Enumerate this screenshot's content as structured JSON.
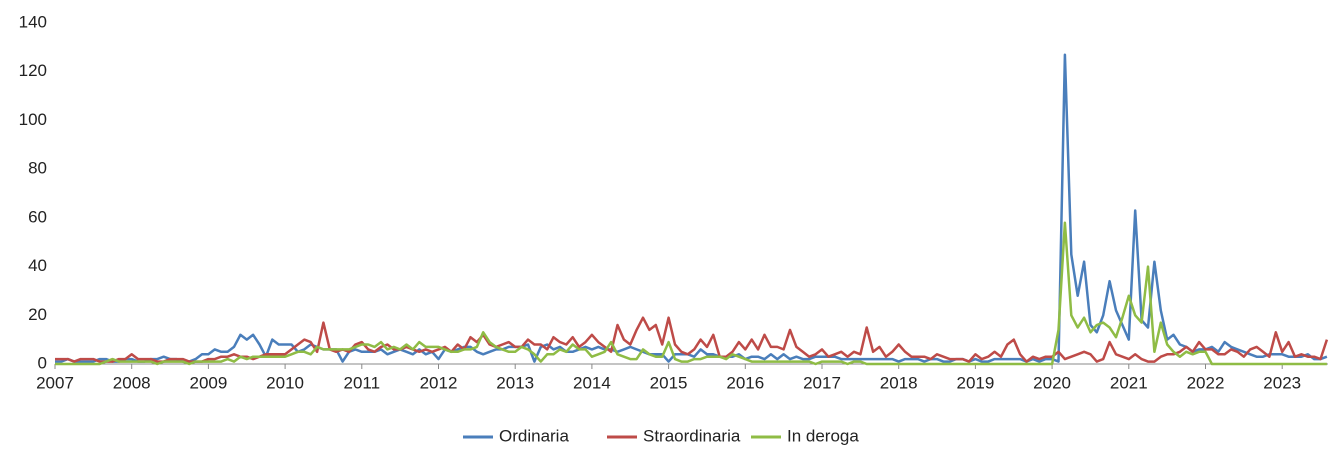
{
  "chart_data": {
    "type": "line",
    "categories": [
      "2007",
      null,
      null,
      null,
      null,
      null,
      null,
      null,
      null,
      null,
      null,
      null,
      "2008",
      null,
      null,
      null,
      null,
      null,
      null,
      null,
      null,
      null,
      null,
      null,
      "2009",
      null,
      null,
      null,
      null,
      null,
      null,
      null,
      null,
      null,
      null,
      null,
      "2010",
      null,
      null,
      null,
      null,
      null,
      null,
      null,
      null,
      null,
      null,
      null,
      "2011",
      null,
      null,
      null,
      null,
      null,
      null,
      null,
      null,
      null,
      null,
      null,
      "2012",
      null,
      null,
      null,
      null,
      null,
      null,
      null,
      null,
      null,
      null,
      null,
      "2013",
      null,
      null,
      null,
      null,
      null,
      null,
      null,
      null,
      null,
      null,
      null,
      "2014",
      null,
      null,
      null,
      null,
      null,
      null,
      null,
      null,
      null,
      null,
      null,
      "2015",
      null,
      null,
      null,
      null,
      null,
      null,
      null,
      null,
      null,
      null,
      null,
      "2016",
      null,
      null,
      null,
      null,
      null,
      null,
      null,
      null,
      null,
      null,
      null,
      "2017",
      null,
      null,
      null,
      null,
      null,
      null,
      null,
      null,
      null,
      null,
      null,
      "2018",
      null,
      null,
      null,
      null,
      null,
      null,
      null,
      null,
      null,
      null,
      null,
      "2019",
      null,
      null,
      null,
      null,
      null,
      null,
      null,
      null,
      null,
      null,
      null,
      "2020",
      null,
      null,
      null,
      null,
      null,
      null,
      null,
      null,
      null,
      null,
      null,
      "2021",
      null,
      null,
      null,
      null,
      null,
      null,
      null,
      null,
      null,
      null,
      null,
      "2022",
      null,
      null,
      null,
      null,
      null,
      null,
      null,
      null,
      null,
      null,
      null,
      "2023",
      null,
      null,
      null,
      null,
      null,
      null,
      null
    ],
    "series": [
      {
        "name": "Ordinaria",
        "color": "#4a7ebb",
        "values": [
          1,
          1,
          2,
          1,
          1,
          1,
          1,
          2,
          2,
          1,
          1,
          2,
          2,
          1,
          1,
          2,
          2,
          3,
          2,
          2,
          1,
          1,
          2,
          4,
          4,
          6,
          5,
          5,
          7,
          12,
          10,
          12,
          8,
          3,
          10,
          8,
          8,
          8,
          5,
          6,
          8,
          7,
          6,
          6,
          6,
          1,
          5,
          6,
          5,
          5,
          5,
          6,
          4,
          5,
          6,
          5,
          4,
          6,
          4,
          5,
          2,
          6,
          5,
          6,
          7,
          7,
          5,
          4,
          5,
          6,
          6,
          7,
          7,
          7,
          8,
          1,
          7,
          8,
          6,
          7,
          5,
          5,
          6,
          7,
          6,
          7,
          6,
          6,
          5,
          6,
          7,
          6,
          5,
          4,
          4,
          4,
          1,
          4,
          4,
          4,
          3,
          6,
          4,
          4,
          3,
          3,
          3,
          4,
          2,
          3,
          3,
          2,
          4,
          2,
          4,
          2,
          3,
          2,
          2,
          3,
          3,
          3,
          3,
          2,
          2,
          2,
          2,
          2,
          2,
          2,
          2,
          2,
          1,
          2,
          2,
          2,
          1,
          2,
          2,
          1,
          1,
          2,
          2,
          1,
          2,
          1,
          1,
          2,
          2,
          2,
          2,
          2,
          1,
          2,
          1,
          2,
          2,
          1,
          127,
          45,
          28,
          42,
          16,
          13,
          20,
          34,
          22,
          16,
          10,
          63,
          18,
          15,
          42,
          22,
          10,
          12,
          8,
          7,
          5,
          6,
          6,
          7,
          5,
          9,
          7,
          6,
          5,
          4,
          3,
          3,
          4,
          4,
          4,
          3,
          3,
          3,
          4,
          2,
          2,
          3
        ]
      },
      {
        "name": "Straordinaria",
        "color": "#be4b48",
        "values": [
          2,
          2,
          2,
          1,
          2,
          2,
          2,
          1,
          1,
          1,
          2,
          2,
          4,
          2,
          2,
          2,
          1,
          1,
          2,
          2,
          2,
          1,
          1,
          1,
          2,
          2,
          3,
          3,
          4,
          3,
          3,
          2,
          3,
          4,
          4,
          4,
          4,
          6,
          8,
          10,
          9,
          5,
          17,
          6,
          5,
          6,
          5,
          8,
          9,
          6,
          5,
          7,
          8,
          6,
          6,
          7,
          6,
          5,
          6,
          5,
          6,
          7,
          5,
          8,
          6,
          11,
          9,
          12,
          8,
          7,
          8,
          9,
          7,
          7,
          10,
          8,
          8,
          6,
          11,
          9,
          8,
          11,
          7,
          9,
          12,
          9,
          7,
          5,
          16,
          10,
          8,
          14,
          19,
          14,
          16,
          8,
          19,
          8,
          5,
          4,
          6,
          10,
          7,
          12,
          3,
          3,
          5,
          9,
          6,
          10,
          6,
          12,
          7,
          7,
          6,
          14,
          7,
          5,
          3,
          4,
          6,
          3,
          4,
          5,
          3,
          5,
          4,
          15,
          5,
          7,
          3,
          5,
          8,
          5,
          3,
          3,
          3,
          2,
          4,
          3,
          2,
          2,
          2,
          1,
          4,
          2,
          3,
          5,
          3,
          8,
          10,
          4,
          1,
          3,
          2,
          3,
          3,
          5,
          2,
          3,
          4,
          5,
          4,
          1,
          2,
          9,
          4,
          3,
          2,
          4,
          2,
          1,
          1,
          3,
          4,
          4,
          5,
          7,
          5,
          9,
          6,
          6,
          4,
          4,
          6,
          5,
          3,
          6,
          7,
          5,
          3,
          13,
          5,
          9,
          3,
          4,
          3,
          3,
          2,
          10
        ]
      },
      {
        "name": "In deroga",
        "color": "#8fbc45",
        "values": [
          0,
          0,
          0,
          0,
          0,
          0,
          0,
          0,
          1,
          2,
          1,
          1,
          1,
          1,
          1,
          1,
          0,
          1,
          1,
          1,
          1,
          0,
          1,
          1,
          1,
          1,
          1,
          2,
          1,
          3,
          2,
          3,
          3,
          3,
          3,
          3,
          3,
          4,
          5,
          5,
          4,
          7,
          6,
          6,
          6,
          6,
          6,
          7,
          8,
          8,
          7,
          9,
          6,
          7,
          6,
          8,
          6,
          9,
          7,
          7,
          7,
          6,
          5,
          5,
          6,
          6,
          7,
          13,
          9,
          7,
          6,
          5,
          5,
          7,
          6,
          4,
          1,
          4,
          4,
          6,
          5,
          8,
          6,
          6,
          3,
          4,
          5,
          9,
          4,
          3,
          2,
          2,
          6,
          4,
          3,
          3,
          9,
          2,
          1,
          1,
          2,
          2,
          3,
          3,
          3,
          2,
          4,
          3,
          2,
          1,
          1,
          1,
          1,
          1,
          1,
          1,
          1,
          1,
          1,
          0,
          1,
          1,
          1,
          1,
          0,
          1,
          1,
          0,
          0,
          0,
          0,
          0,
          0,
          0,
          0,
          0,
          0,
          0,
          0,
          0,
          0,
          0,
          0,
          0,
          0,
          0,
          0,
          0,
          0,
          0,
          0,
          0,
          0,
          0,
          0,
          0,
          0,
          14,
          58,
          20,
          15,
          19,
          13,
          16,
          17,
          15,
          11,
          19,
          28,
          20,
          17,
          40,
          5,
          17,
          8,
          5,
          3,
          5,
          4,
          5,
          5,
          0,
          0,
          0,
          0,
          0,
          0,
          0,
          0,
          0,
          0,
          0,
          0,
          0,
          0,
          0,
          0,
          0,
          0,
          0
        ]
      }
    ],
    "ylim": [
      0,
      140
    ],
    "yticks": [
      0,
      20,
      40,
      60,
      80,
      100,
      120,
      140
    ],
    "legend": "bottom"
  }
}
